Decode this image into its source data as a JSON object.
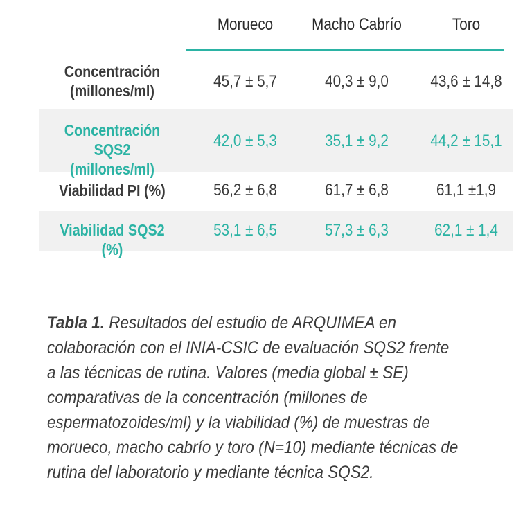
{
  "table": {
    "columns": [
      "Morueco",
      "Macho Cabrío",
      "Toro"
    ],
    "rows": [
      {
        "label_line1": "Concentración",
        "label_line2": "(millones/ml)",
        "values": [
          "45,7 ± 5,7",
          "40,3 ± 9,0",
          "43,6 ± 14,8"
        ]
      },
      {
        "label_line1": "Concentración SQS2",
        "label_line2": "(millones/ml)",
        "values": [
          "42,0 ± 5,3",
          "35,1 ± 9,2",
          "44,2 ± 15,1"
        ]
      },
      {
        "label_line1": "Viabilidad PI (%)",
        "label_line2": "",
        "values": [
          "56,2 ± 6,8",
          "61,7 ± 6,8",
          "61,1 ±1,9"
        ]
      },
      {
        "label_line1": "Viabilidad SQS2 (%)",
        "label_line2": "",
        "values": [
          "53,1 ± 6,5",
          "57,3 ± 6,3",
          "62,1 ± 1,4"
        ]
      }
    ]
  },
  "caption": {
    "lead": "Tabla 1.",
    "text": "Resultados del estudio de ARQUIMEA en colaboración con el INIA-CSIC de evaluación SQS2 frente a las técnicas de rutina. Valores (media global ± SE) comparativas de la concentración (millones de espermatozoides/ml) y la viabilidad (%) de muestras de morueco, macho cabrío y toro (N=10) mediante técnicas de rutina del laboratorio y mediante técnica SQS2."
  },
  "colors": {
    "accent": "#2bb3a4",
    "text": "#3a3a3a",
    "row_shade": "#f1f1f1"
  }
}
